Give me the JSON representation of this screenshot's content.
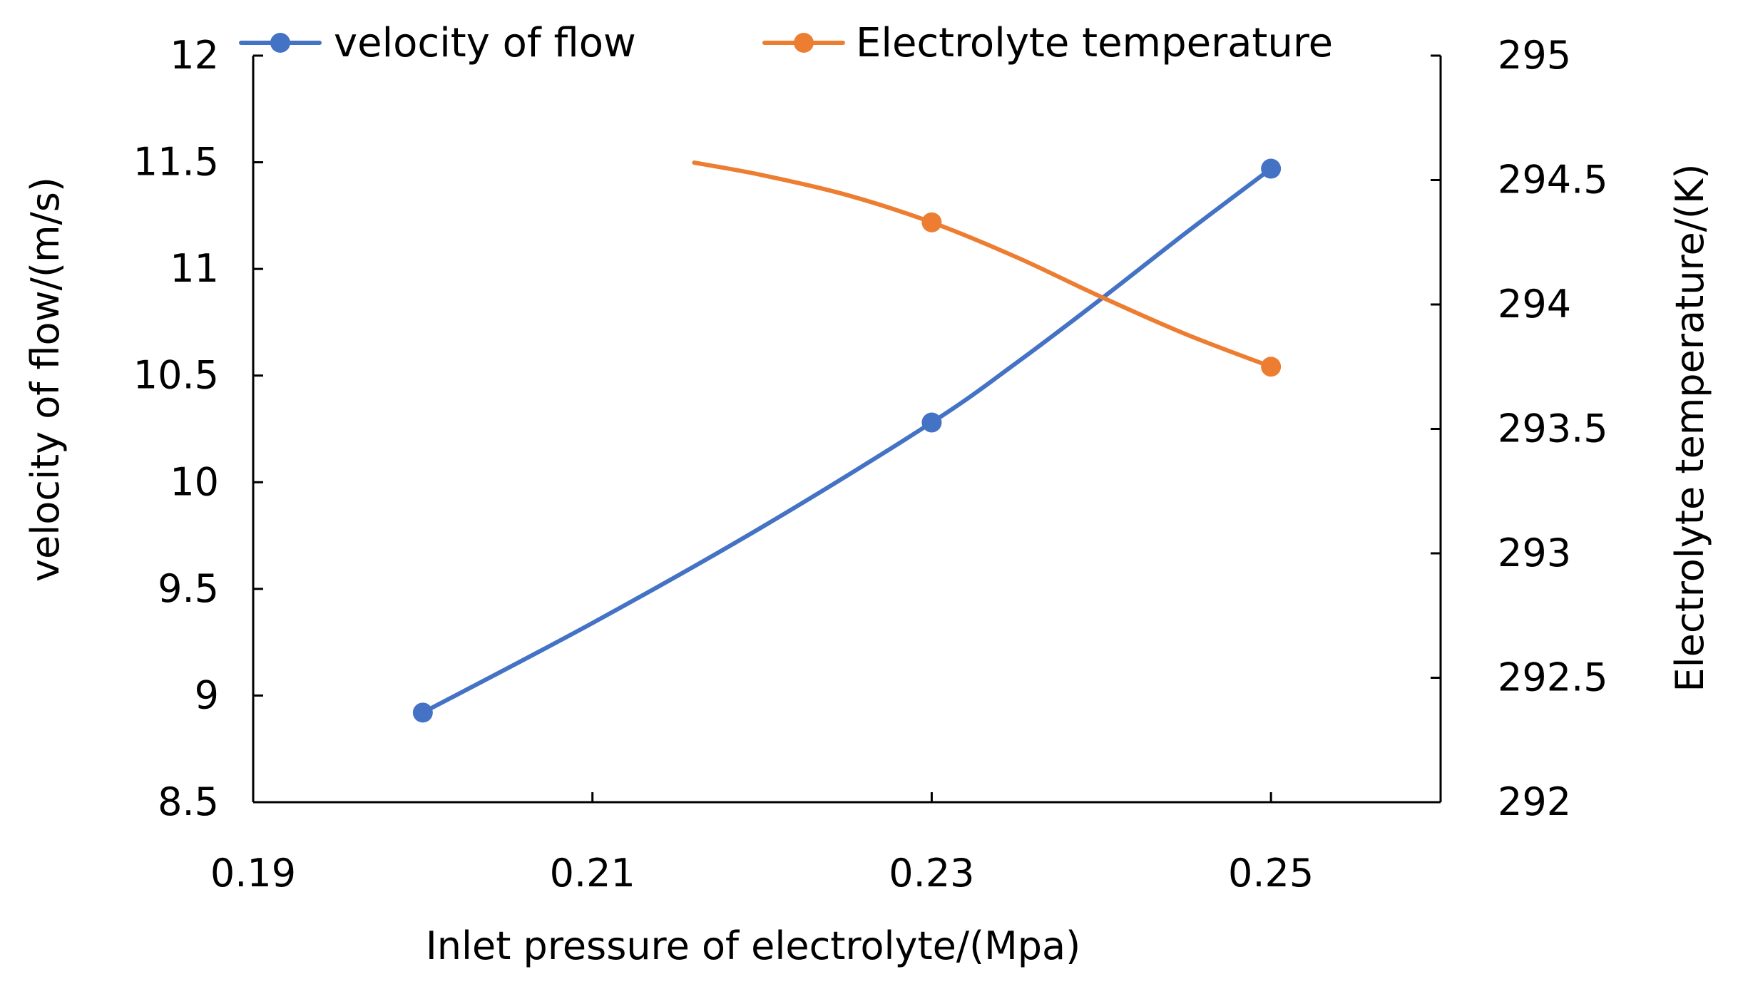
{
  "chart_data": {
    "type": "line",
    "title": "",
    "xlabel": "Inlet pressure of electrolyte/(Mpa)",
    "ylabel": "velocity of flow/(m/s)",
    "y2label": "Electrolyte temperature/(K)",
    "xlim": [
      0.19,
      0.26
    ],
    "ylim": [
      8.5,
      12
    ],
    "y2lim": [
      292,
      295
    ],
    "x_ticks": [
      0.19,
      0.21,
      0.23,
      0.25
    ],
    "x_tick_labels": [
      "0.19",
      "0.21",
      "0.23",
      "0.25"
    ],
    "y_ticks": [
      8.5,
      9,
      9.5,
      10,
      10.5,
      11,
      11.5,
      12
    ],
    "y_tick_labels": [
      "8.5",
      "9",
      "9.5",
      "10",
      "10.5",
      "11",
      "11.5",
      "12"
    ],
    "y2_ticks": [
      292,
      292.5,
      293,
      293.5,
      294,
      294.5,
      295
    ],
    "y2_tick_labels": [
      "292",
      "292.5",
      "293",
      "293.5",
      "294",
      "294.5",
      "295"
    ],
    "grid": false,
    "legend_position": "top",
    "series": [
      {
        "name": "velocity of flow",
        "axis": "left",
        "color": "#4472C4",
        "x": [
          0.2,
          0.23,
          0.25
        ],
        "values": [
          8.92,
          10.28,
          11.47
        ],
        "curve_x": [
          0.2,
          0.21,
          0.22,
          0.23,
          0.235,
          0.24,
          0.245,
          0.25
        ],
        "curve_values": [
          8.92,
          9.34,
          9.79,
          10.28,
          10.56,
          10.86,
          11.17,
          11.47
        ]
      },
      {
        "name": "Electrolyte temperature",
        "axis": "right",
        "color": "#ED7D31",
        "x": [
          0.23,
          0.25
        ],
        "values": [
          294.33,
          293.75
        ],
        "curve_x": [
          0.216,
          0.22,
          0.225,
          0.23,
          0.235,
          0.24,
          0.245,
          0.25
        ],
        "curve_values": [
          294.57,
          294.52,
          294.44,
          294.33,
          294.19,
          294.03,
          293.88,
          293.75
        ]
      }
    ]
  }
}
